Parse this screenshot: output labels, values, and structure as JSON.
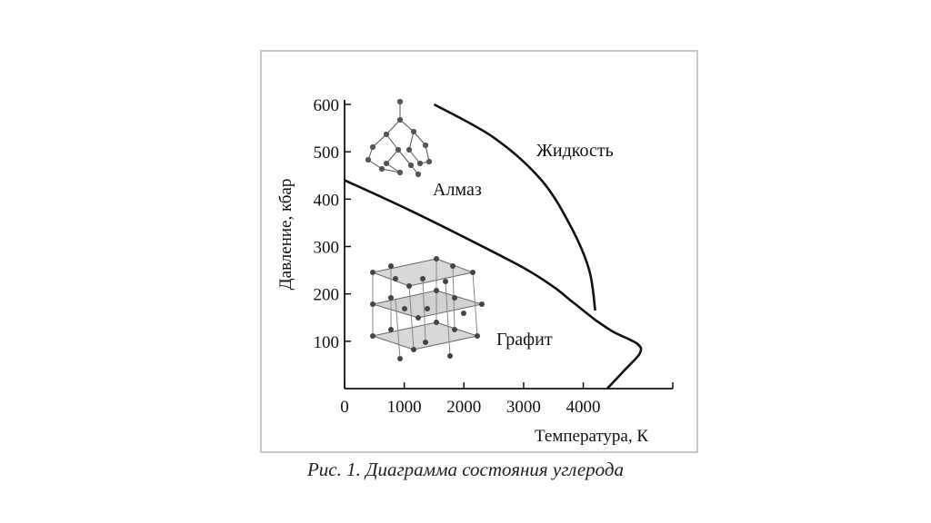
{
  "caption": "Рис. 1. Диаграмма состояния углерода",
  "chart_data": {
    "type": "line",
    "xlabel": "Температура, К",
    "ylabel": "Давление, кбар",
    "xlim": [
      0,
      5500
    ],
    "ylim": [
      0,
      600
    ],
    "x_ticks": [
      0,
      1000,
      2000,
      3000,
      4000
    ],
    "x_tick_labels": [
      "0",
      "1000",
      "2000",
      "3000",
      "4000"
    ],
    "y_ticks": [
      100,
      200,
      300,
      400,
      500,
      600
    ],
    "y_tick_labels": [
      "100",
      "200",
      "300",
      "400",
      "500",
      "600"
    ],
    "grid": false,
    "series": [
      {
        "values": [
          [
            0,
            440
          ],
          [
            1000,
            382
          ],
          [
            2000,
            320
          ],
          [
            3000,
            255
          ],
          [
            3500,
            215
          ],
          [
            3800,
            185
          ],
          [
            4200,
            145
          ]
        ]
      },
      {
        "values": [
          [
            1500,
            600
          ],
          [
            2500,
            530
          ],
          [
            3300,
            440
          ],
          [
            3800,
            340
          ],
          [
            4100,
            250
          ],
          [
            4200,
            165
          ]
        ]
      },
      {
        "values": [
          [
            4200,
            145
          ],
          [
            4500,
            120
          ],
          [
            4900,
            95
          ],
          [
            4950,
            75
          ],
          [
            4700,
            40
          ],
          [
            4400,
            0
          ]
        ]
      }
    ],
    "region_labels": [
      "Алмаз",
      "Жидкость",
      "Графит"
    ],
    "colors": {
      "curve": "#111111",
      "axis": "#111111"
    }
  }
}
